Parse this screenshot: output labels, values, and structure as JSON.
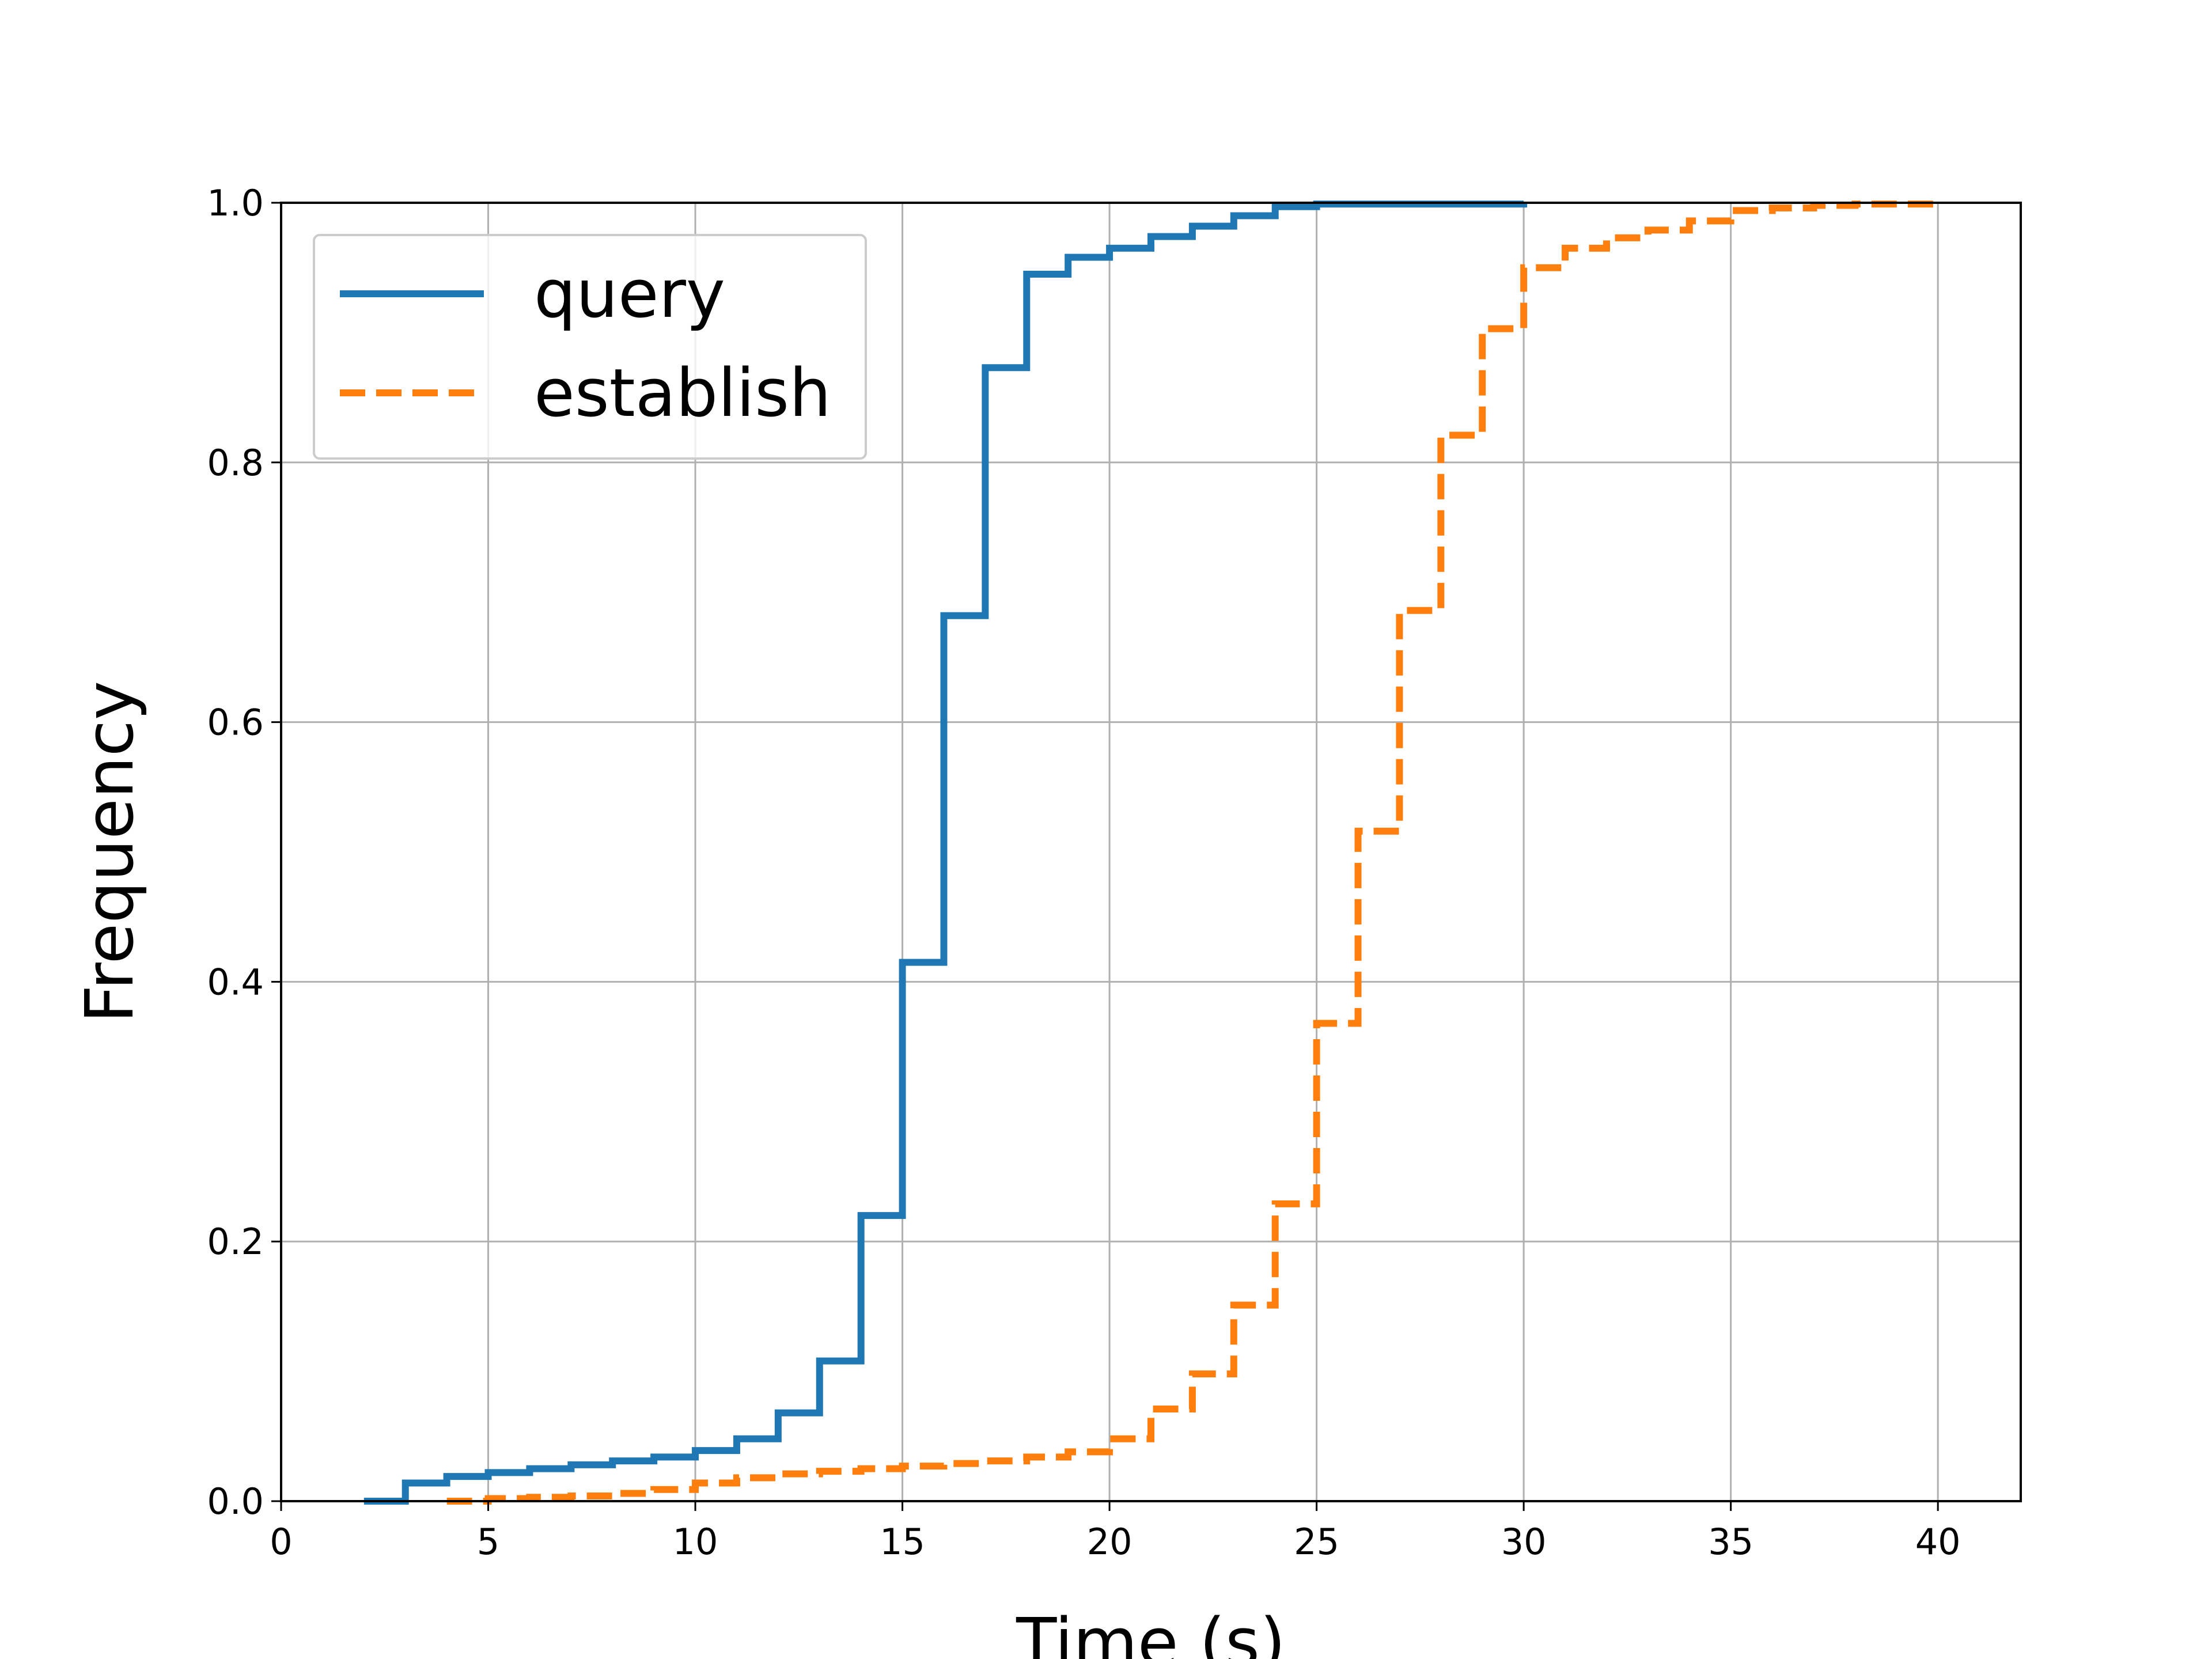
{
  "chart_data": {
    "type": "line",
    "xlabel": "Time (s)",
    "ylabel": "Frequency",
    "xlim": [
      0,
      42
    ],
    "ylim": [
      0,
      1.0
    ],
    "grid": true,
    "legend_position": "top-left",
    "x_ticks": [
      0,
      5,
      10,
      15,
      20,
      25,
      30,
      35,
      40
    ],
    "x_tick_labels": [
      "0",
      "5",
      "10",
      "15",
      "20",
      "25",
      "30",
      "35",
      "40"
    ],
    "y_ticks": [
      0.0,
      0.2,
      0.4,
      0.6,
      0.8,
      1.0
    ],
    "y_tick_labels": [
      "0.0",
      "0.2",
      "0.4",
      "0.6",
      "0.8",
      "1.0"
    ],
    "series": [
      {
        "name": "query",
        "color": "#1f77b4",
        "style": "solid",
        "step": "post",
        "x": [
          2,
          3,
          4,
          5,
          6,
          7,
          8,
          9,
          10,
          11,
          12,
          13,
          14,
          15,
          16,
          17,
          18,
          19,
          20,
          21,
          22,
          23,
          24,
          25,
          26,
          27,
          28,
          29,
          30
        ],
        "y": [
          0.0,
          0.014,
          0.019,
          0.022,
          0.025,
          0.028,
          0.031,
          0.034,
          0.039,
          0.048,
          0.068,
          0.108,
          0.22,
          0.415,
          0.682,
          0.873,
          0.945,
          0.958,
          0.965,
          0.974,
          0.982,
          0.99,
          0.997,
          0.999,
          0.999,
          0.999,
          0.999,
          0.999,
          1.0
        ]
      },
      {
        "name": "establish",
        "color": "#ff7f0e",
        "style": "dashed",
        "step": "post",
        "x": [
          4,
          5,
          6,
          7,
          8,
          9,
          10,
          11,
          12,
          13,
          14,
          15,
          16,
          17,
          18,
          19,
          20,
          21,
          22,
          23,
          24,
          25,
          26,
          27,
          28,
          29,
          30,
          31,
          32,
          33,
          34,
          35,
          36,
          37,
          38,
          39,
          40
        ],
        "y": [
          0.0,
          0.002,
          0.003,
          0.004,
          0.006,
          0.009,
          0.014,
          0.018,
          0.021,
          0.023,
          0.025,
          0.027,
          0.029,
          0.031,
          0.034,
          0.038,
          0.048,
          0.071,
          0.098,
          0.151,
          0.229,
          0.368,
          0.516,
          0.686,
          0.821,
          0.903,
          0.95,
          0.965,
          0.973,
          0.979,
          0.986,
          0.994,
          0.996,
          0.998,
          0.999,
          0.999,
          1.0
        ]
      }
    ]
  }
}
